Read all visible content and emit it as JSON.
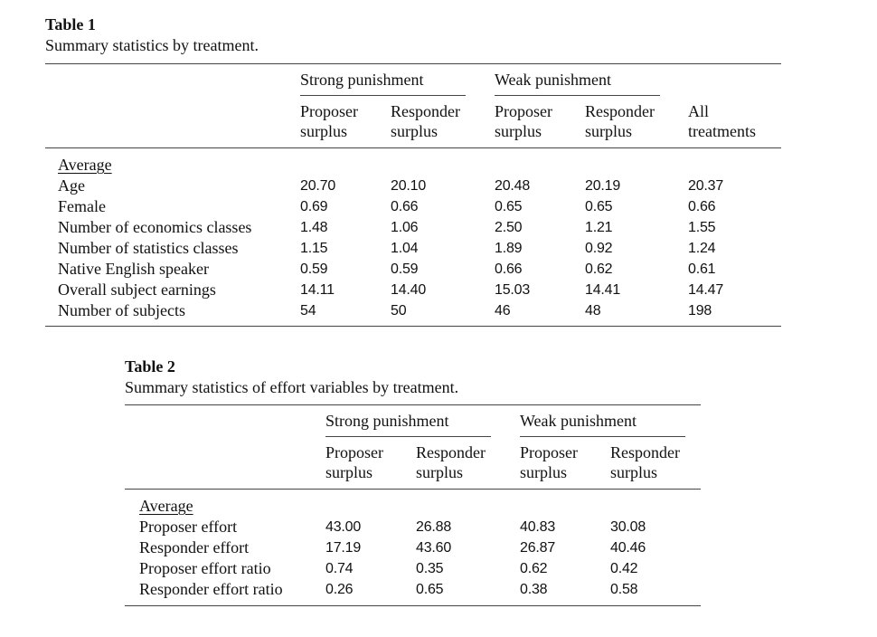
{
  "table1": {
    "title": "Table 1",
    "subtitle": "Summary statistics by treatment.",
    "groups": [
      "Strong punishment",
      "Weak punishment"
    ],
    "columns": [
      [
        "Proposer",
        "surplus"
      ],
      [
        "Responder",
        "surplus"
      ],
      [
        "Proposer",
        "surplus"
      ],
      [
        "Responder",
        "surplus"
      ],
      [
        "All",
        "treatments"
      ]
    ],
    "section_label": "Average",
    "rows": [
      {
        "label": "Age",
        "values": [
          "20.70",
          "20.10",
          "20.48",
          "20.19",
          "20.37"
        ]
      },
      {
        "label": "Female",
        "values": [
          "0.69",
          "0.66",
          "0.65",
          "0.65",
          "0.66"
        ]
      },
      {
        "label": "Number of economics classes",
        "values": [
          "1.48",
          "1.06",
          "2.50",
          "1.21",
          "1.55"
        ]
      },
      {
        "label": "Number of statistics classes",
        "values": [
          "1.15",
          "1.04",
          "1.89",
          "0.92",
          "1.24"
        ]
      },
      {
        "label": "Native English speaker",
        "values": [
          "0.59",
          "0.59",
          "0.66",
          "0.62",
          "0.61"
        ]
      },
      {
        "label": "Overall subject earnings",
        "values": [
          "14.11",
          "14.40",
          "15.03",
          "14.41",
          "14.47"
        ]
      },
      {
        "label": "Number of subjects",
        "values": [
          "54",
          "50",
          "46",
          "48",
          "198"
        ]
      }
    ]
  },
  "table2": {
    "title": "Table 2",
    "subtitle": "Summary statistics of effort variables by treatment.",
    "groups": [
      "Strong punishment",
      "Weak punishment"
    ],
    "columns": [
      [
        "Proposer",
        "surplus"
      ],
      [
        "Responder",
        "surplus"
      ],
      [
        "Proposer",
        "surplus"
      ],
      [
        "Responder",
        "surplus"
      ]
    ],
    "section_label": "Average",
    "rows": [
      {
        "label": "Proposer effort",
        "values": [
          "43.00",
          "26.88",
          "40.83",
          "30.08"
        ]
      },
      {
        "label": "Responder effort",
        "values": [
          "17.19",
          "43.60",
          "26.87",
          "40.46"
        ]
      },
      {
        "label": "Proposer effort ratio",
        "values": [
          "0.74",
          "0.35",
          "0.62",
          "0.42"
        ]
      },
      {
        "label": "Responder effort ratio",
        "values": [
          "0.26",
          "0.65",
          "0.38",
          "0.58"
        ]
      }
    ]
  }
}
